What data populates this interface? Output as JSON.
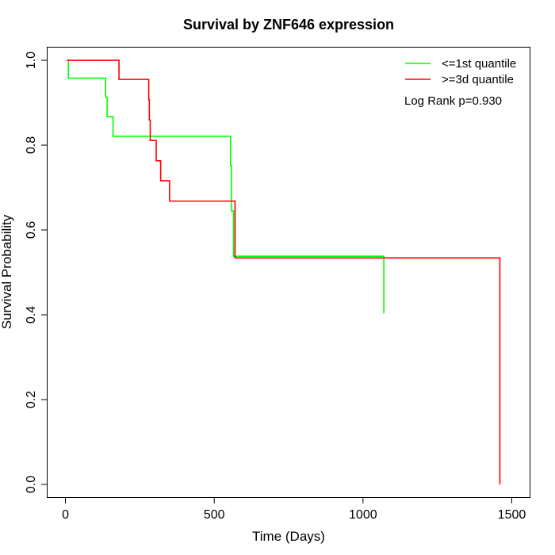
{
  "chart_data": {
    "type": "line",
    "title": "Survival by ZNF646 expression",
    "xlabel": "Time (Days)",
    "ylabel": "Survival Probability",
    "xlim": [
      -60,
      1560
    ],
    "ylim": [
      -0.03,
      1.03
    ],
    "xticks": [
      0,
      500,
      1000,
      1500
    ],
    "yticks": [
      0.0,
      0.2,
      0.4,
      0.6,
      0.8,
      1.0
    ],
    "xtick_labels": [
      "0",
      "500",
      "1000",
      "1500"
    ],
    "ytick_labels": [
      "0.0",
      "0.2",
      "0.4",
      "0.6",
      "0.8",
      "1.0"
    ],
    "step": true,
    "grid": false,
    "legend_position": "top-right",
    "annotation": "Log Rank p=0.930",
    "series": [
      {
        "name": "<=1st quantile",
        "color": "#00ff00",
        "x": [
          5,
          10,
          130,
          135,
          140,
          160,
          390,
          555,
          558,
          565,
          680,
          1070
        ],
        "y": [
          1.0,
          0.958,
          0.958,
          0.913,
          0.867,
          0.821,
          0.821,
          0.752,
          0.645,
          0.538,
          0.538,
          0.403
        ]
      },
      {
        "name": ">=3d quantile",
        "color": "#ff0000",
        "x": [
          5,
          105,
          180,
          280,
          282,
          285,
          305,
          320,
          350,
          570,
          1460
        ],
        "y": [
          1.0,
          1.0,
          0.955,
          0.907,
          0.859,
          0.811,
          0.763,
          0.716,
          0.668,
          0.534,
          0.534
        ],
        "end_drop_to": 0.0
      }
    ]
  }
}
